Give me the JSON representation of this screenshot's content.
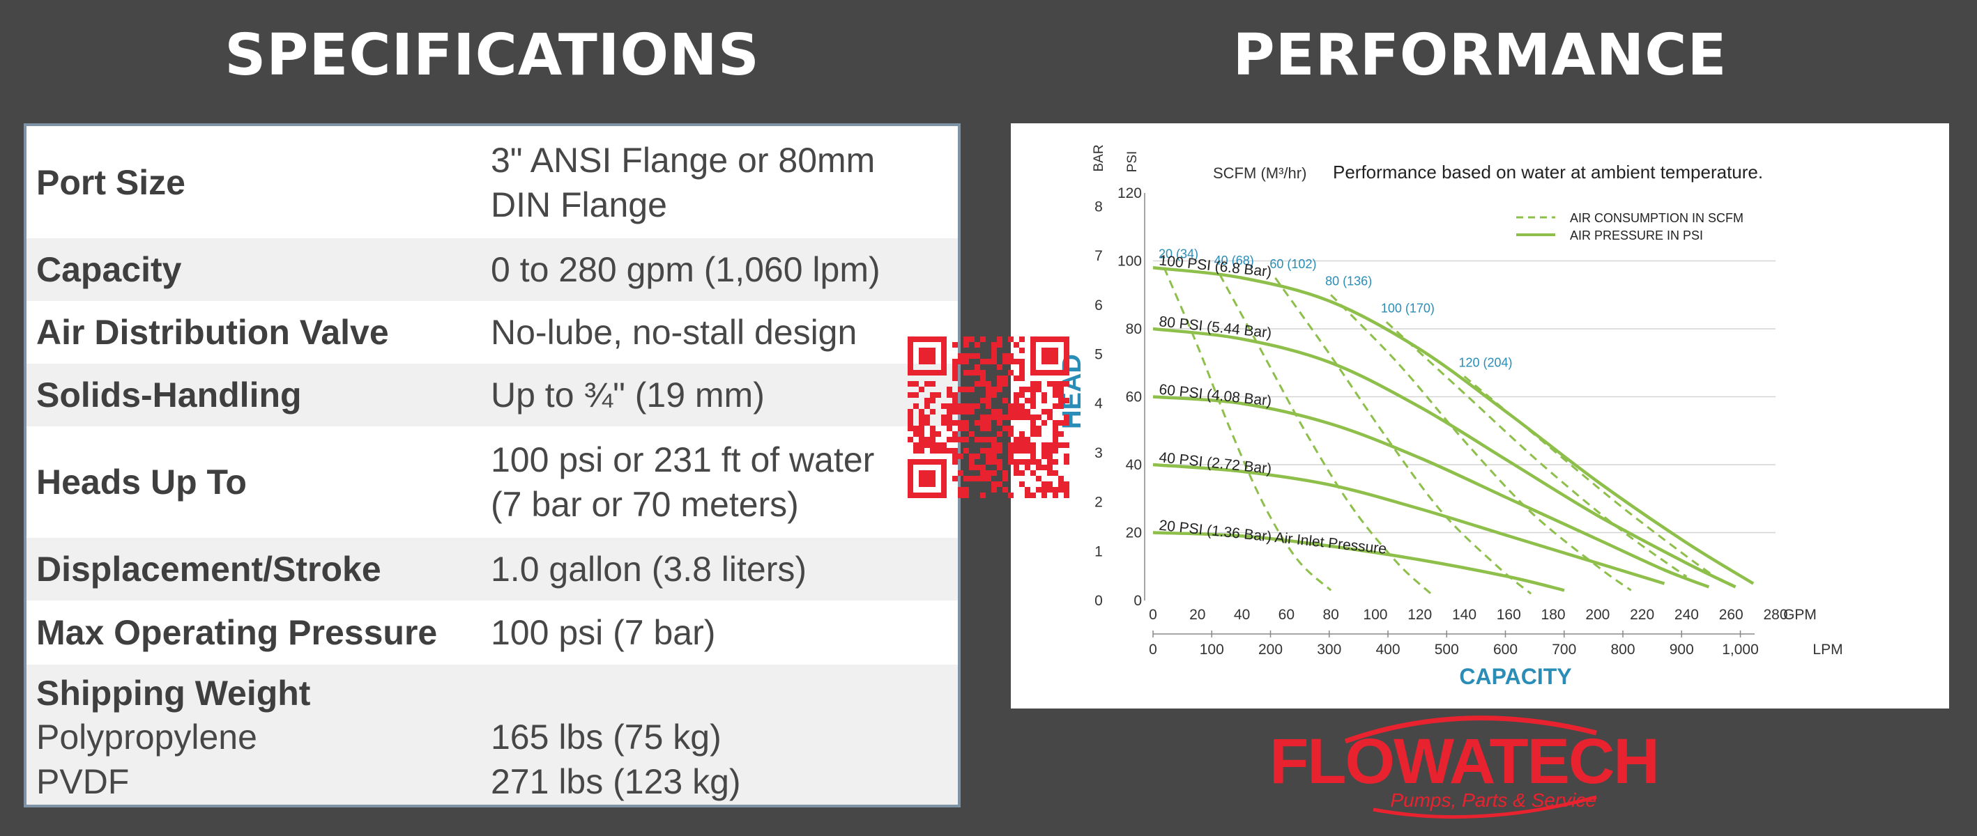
{
  "headings": {
    "specifications": "SPECIFICATIONS",
    "performance": "PERFORMANCE"
  },
  "specs": [
    {
      "label": "Port Size",
      "value_lines": [
        "3\" ANSI Flange or 80mm",
        "DIN Flange"
      ]
    },
    {
      "label": "Capacity",
      "value_lines": [
        "0 to 280 gpm (1,060 lpm)"
      ]
    },
    {
      "label": "Air Distribution Valve",
      "value_lines": [
        "No-lube, no-stall design"
      ]
    },
    {
      "label": "Solids-Handling",
      "value_lines": [
        "Up to ¾\" (19 mm)"
      ]
    },
    {
      "label": "Heads Up To",
      "value_lines": [
        "100 psi or 231 ft of water",
        "(7 bar or 70 meters)"
      ]
    },
    {
      "label": "Displacement/Stroke",
      "value_lines": [
        "1.0 gallon (3.8 liters)"
      ]
    },
    {
      "label": "Max Operating Pressure",
      "value_lines": [
        "100 psi (7 bar)"
      ]
    }
  ],
  "shipping_weight": {
    "label": "Shipping Weight",
    "items": [
      {
        "name": "Polypropylene",
        "value": "165 lbs (75 kg)"
      },
      {
        "name": "PVDF",
        "value": "271 lbs (123 kg)"
      }
    ]
  },
  "chart_data": {
    "type": "line",
    "note": "Performance based on water at ambient temperature.",
    "scfm_unit_label": "SCFM (M³/hr)",
    "ylabel": "HEAD",
    "xlabel": "CAPACITY",
    "y_unit_bar": "BAR",
    "y_unit_psi": "PSI",
    "x_unit_gpm": "GPM",
    "x_unit_lpm": "LPM",
    "ylim_psi": [
      0,
      120
    ],
    "xlim_gpm": [
      0,
      280
    ],
    "y_ticks_psi": [
      "0",
      "20",
      "40",
      "60",
      "80",
      "100",
      "120"
    ],
    "y_ticks_bar": [
      "0",
      "1",
      "2",
      "3",
      "4",
      "5",
      "6",
      "7",
      "8"
    ],
    "x_ticks_gpm": [
      "0",
      "20",
      "40",
      "60",
      "80",
      "100",
      "120",
      "140",
      "160",
      "180",
      "200",
      "220",
      "240",
      "260",
      "280"
    ],
    "x_ticks_lpm": [
      "0",
      "100",
      "200",
      "300",
      "400",
      "500",
      "600",
      "700",
      "800",
      "900",
      "1,000"
    ],
    "legend": {
      "position": "top-right",
      "dashed": "AIR CONSUMPTION IN SCFM",
      "solid": "AIR PRESSURE IN PSI"
    },
    "colors": {
      "curve": "#8dbf4a",
      "blue_label": "#2a8db8",
      "axis_title": "#2a8db8",
      "grid": "#d4d4d4",
      "text": "#333333"
    },
    "pressure_series": [
      {
        "name": "100 PSI (6.8 Bar)",
        "points": [
          [
            0,
            98
          ],
          [
            40,
            95
          ],
          [
            80,
            88
          ],
          [
            120,
            74
          ],
          [
            160,
            55
          ],
          [
            200,
            35
          ],
          [
            240,
            17
          ],
          [
            270,
            5
          ]
        ]
      },
      {
        "name": "80 PSI (5.44 Bar)",
        "points": [
          [
            0,
            80
          ],
          [
            40,
            77
          ],
          [
            80,
            70
          ],
          [
            120,
            57
          ],
          [
            160,
            41
          ],
          [
            200,
            25
          ],
          [
            240,
            11
          ],
          [
            262,
            4
          ]
        ]
      },
      {
        "name": "60 PSI (4.08 Bar)",
        "points": [
          [
            0,
            60
          ],
          [
            40,
            58
          ],
          [
            80,
            52
          ],
          [
            120,
            42
          ],
          [
            160,
            30
          ],
          [
            200,
            18
          ],
          [
            230,
            9
          ],
          [
            250,
            4
          ]
        ]
      },
      {
        "name": "40 PSI (2.72 Bar)",
        "points": [
          [
            0,
            40
          ],
          [
            40,
            38
          ],
          [
            80,
            34
          ],
          [
            120,
            27
          ],
          [
            160,
            19
          ],
          [
            200,
            11
          ],
          [
            230,
            5
          ]
        ]
      },
      {
        "name": "20 PSI (1.36 Bar) Air Inlet Pressure",
        "points": [
          [
            0,
            20
          ],
          [
            40,
            19
          ],
          [
            80,
            16
          ],
          [
            120,
            12
          ],
          [
            160,
            7
          ],
          [
            185,
            3
          ]
        ]
      }
    ],
    "air_consumption_series": [
      {
        "name": "20 (34)",
        "points": [
          [
            5,
            98
          ],
          [
            20,
            75
          ],
          [
            35,
            50
          ],
          [
            50,
            28
          ],
          [
            65,
            12
          ],
          [
            80,
            3
          ]
        ]
      },
      {
        "name": "40 (68)",
        "points": [
          [
            30,
            96
          ],
          [
            50,
            72
          ],
          [
            70,
            48
          ],
          [
            90,
            27
          ],
          [
            110,
            11
          ],
          [
            125,
            2
          ]
        ]
      },
      {
        "name": "60 (102)",
        "points": [
          [
            55,
            95
          ],
          [
            80,
            72
          ],
          [
            105,
            48
          ],
          [
            130,
            26
          ],
          [
            155,
            10
          ],
          [
            170,
            2
          ]
        ]
      },
      {
        "name": "80 (136)",
        "points": [
          [
            80,
            90
          ],
          [
            110,
            70
          ],
          [
            140,
            47
          ],
          [
            170,
            26
          ],
          [
            200,
            10
          ],
          [
            215,
            3
          ]
        ]
      },
      {
        "name": "100 (170)",
        "points": [
          [
            105,
            82
          ],
          [
            140,
            61
          ],
          [
            175,
            40
          ],
          [
            210,
            21
          ],
          [
            240,
            7
          ]
        ]
      },
      {
        "name": "120 (204)",
        "points": [
          [
            140,
            66
          ],
          [
            175,
            47
          ],
          [
            210,
            28
          ],
          [
            240,
            13
          ],
          [
            255,
            6
          ]
        ]
      }
    ]
  },
  "logo": {
    "name": "FLOWATECH",
    "tagline": "Pumps, Parts & Service",
    "color": "#e8232f"
  },
  "qr": {
    "color": "#e8232f"
  }
}
